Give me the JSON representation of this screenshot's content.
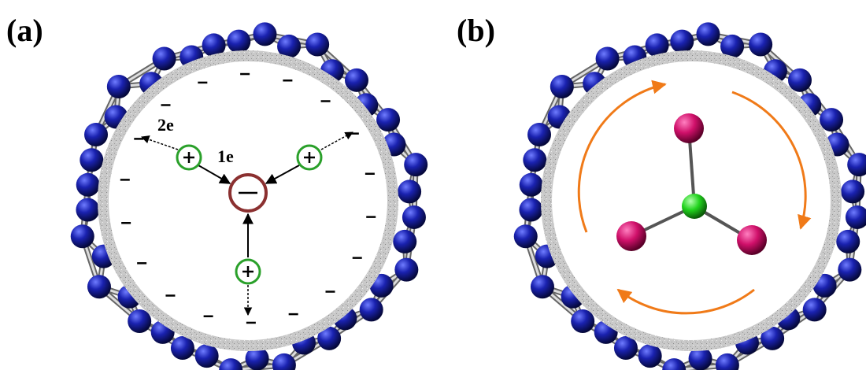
{
  "panels": [
    {
      "label": "(a)",
      "annotations": [
        "2e",
        "1e"
      ]
    },
    {
      "label": "(b)"
    }
  ]
}
